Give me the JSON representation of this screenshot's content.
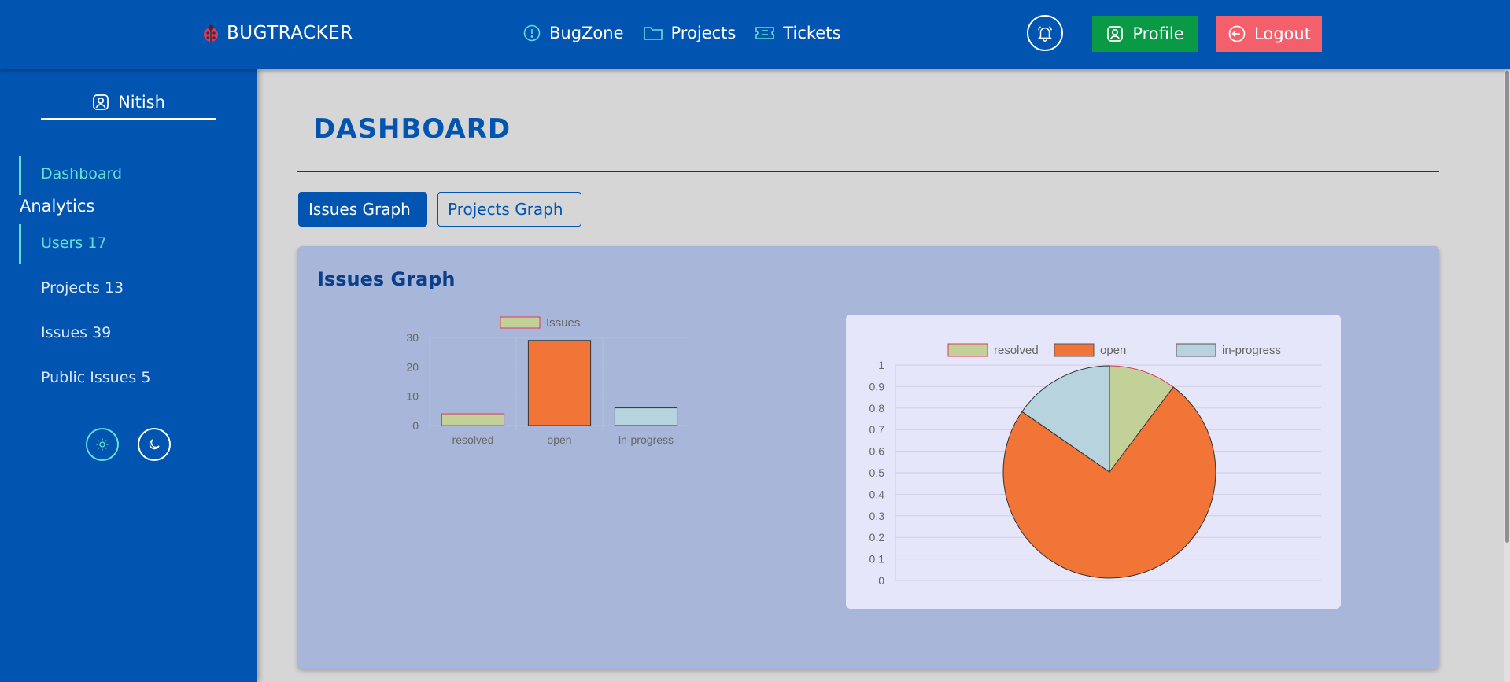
{
  "header": {
    "brand": "BUGTRACKER",
    "brand_icon": "ladybug-icon",
    "nav": [
      {
        "label": "BugZone",
        "icon": "alert-circle-icon"
      },
      {
        "label": "Projects",
        "icon": "folder-icon"
      },
      {
        "label": "Tickets",
        "icon": "ticket-icon"
      }
    ],
    "profile_label": "Profile",
    "logout_label": "Logout"
  },
  "sidebar": {
    "user_name": "Nitish",
    "dashboard_label": "Dashboard",
    "analytics_heading": "Analytics",
    "items": [
      {
        "label": "Users 17"
      },
      {
        "label": "Projects 13"
      },
      {
        "label": "Issues 39"
      },
      {
        "label": "Public Issues 5"
      }
    ]
  },
  "main": {
    "title": "DASHBOARD",
    "tabs": [
      {
        "label": "Issues Graph",
        "active": true
      },
      {
        "label": "Projects Graph",
        "active": false
      }
    ],
    "panel_title": "Issues Graph"
  },
  "colors": {
    "primary": "#0155b0",
    "accent": "#62e0d6",
    "profile": "#0a9a45",
    "logout": "#f35f6a",
    "resolved": "#c2d197",
    "open": "#f07537",
    "in_progress": "#b7d4de"
  },
  "chart_data": [
    {
      "type": "bar",
      "categories": [
        "resolved",
        "open",
        "in-progress"
      ],
      "series": [
        {
          "name": "Issues",
          "values": [
            4,
            29,
            6
          ]
        }
      ],
      "ylim": [
        0,
        30
      ],
      "yticks": [
        0,
        10,
        20,
        30
      ],
      "grid": true,
      "legend": "top"
    },
    {
      "type": "pie",
      "labels": [
        "resolved",
        "open",
        "in-progress"
      ],
      "values": [
        4,
        29,
        6
      ],
      "yticks": [
        0,
        0.1,
        0.2,
        0.3,
        0.4,
        0.5,
        0.6,
        0.7,
        0.8,
        0.9,
        1
      ],
      "grid": true,
      "legend": "top"
    }
  ]
}
